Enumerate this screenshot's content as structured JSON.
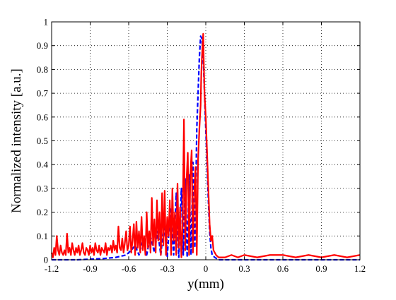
{
  "chart_data": {
    "type": "line",
    "title": "",
    "xlabel": "y(mm)",
    "ylabel": "Normalized intensity [a.u.]",
    "xlim": [
      -1.2,
      1.2
    ],
    "ylim": [
      0,
      1
    ],
    "xticks": [
      -1.2,
      -0.9,
      -0.6,
      -0.3,
      0,
      0.3,
      0.6,
      0.9,
      1.2
    ],
    "xtick_labels": [
      "-1.2",
      "-0.9",
      "-0.6",
      "-0.3",
      "0",
      "0.3",
      "0.6",
      "0.9",
      "1.2"
    ],
    "yticks": [
      0,
      0.1,
      0.2,
      0.3,
      0.4,
      0.5,
      0.6,
      0.7,
      0.8,
      0.9,
      1
    ],
    "ytick_labels": [
      "0",
      "0.1",
      "0.2",
      "0.3",
      "0.4",
      "0.5",
      "0.6",
      "0.7",
      "0.8",
      "0.9",
      "1"
    ],
    "grid": true,
    "legend": "none",
    "series": [
      {
        "color": "#0000ff",
        "style": "dashed",
        "x": [
          -1.2,
          -1.0,
          -0.8,
          -0.7,
          -0.62,
          -0.58,
          -0.55,
          -0.52,
          -0.49,
          -0.46,
          -0.43,
          -0.4,
          -0.375,
          -0.35,
          -0.325,
          -0.3,
          -0.275,
          -0.25,
          -0.23,
          -0.21,
          -0.19,
          -0.175,
          -0.16,
          -0.145,
          -0.13,
          -0.115,
          -0.1,
          -0.085,
          -0.07,
          -0.06,
          -0.05,
          -0.04,
          -0.03,
          -0.02,
          -0.01,
          0.0,
          0.01,
          0.02,
          0.03,
          0.04,
          0.05,
          0.07,
          0.1,
          0.2,
          0.6,
          1.2
        ],
        "y": [
          0,
          0,
          0.005,
          0.01,
          0.02,
          0.04,
          0.06,
          0.02,
          0.08,
          0.02,
          0.1,
          0.03,
          0.12,
          0.02,
          0.16,
          0.01,
          0.22,
          0.02,
          0.28,
          0.01,
          0.3,
          0.02,
          0.34,
          0.01,
          0.36,
          0.02,
          0.41,
          0.05,
          0.55,
          0.7,
          0.85,
          0.94,
          0.93,
          0.85,
          0.7,
          0.55,
          0.4,
          0.25,
          0.12,
          0.05,
          0.02,
          0.01,
          0,
          0,
          0,
          0
        ]
      },
      {
        "color": "#ff0000",
        "style": "solid",
        "x": [
          -1.2,
          -1.19,
          -1.18,
          -1.17,
          -1.16,
          -1.15,
          -1.14,
          -1.13,
          -1.12,
          -1.11,
          -1.1,
          -1.09,
          -1.08,
          -1.07,
          -1.06,
          -1.05,
          -1.04,
          -1.03,
          -1.02,
          -1.01,
          -1.0,
          -0.99,
          -0.98,
          -0.97,
          -0.96,
          -0.95,
          -0.94,
          -0.93,
          -0.92,
          -0.91,
          -0.9,
          -0.89,
          -0.88,
          -0.87,
          -0.86,
          -0.85,
          -0.84,
          -0.83,
          -0.82,
          -0.81,
          -0.8,
          -0.79,
          -0.78,
          -0.77,
          -0.76,
          -0.75,
          -0.74,
          -0.73,
          -0.72,
          -0.71,
          -0.7,
          -0.69,
          -0.68,
          -0.67,
          -0.66,
          -0.65,
          -0.64,
          -0.63,
          -0.62,
          -0.61,
          -0.6,
          -0.59,
          -0.58,
          -0.57,
          -0.56,
          -0.55,
          -0.54,
          -0.53,
          -0.52,
          -0.51,
          -0.5,
          -0.49,
          -0.48,
          -0.47,
          -0.46,
          -0.45,
          -0.44,
          -0.43,
          -0.42,
          -0.41,
          -0.4,
          -0.39,
          -0.38,
          -0.37,
          -0.36,
          -0.35,
          -0.34,
          -0.33,
          -0.32,
          -0.31,
          -0.3,
          -0.29,
          -0.28,
          -0.27,
          -0.26,
          -0.25,
          -0.24,
          -0.23,
          -0.22,
          -0.21,
          -0.2,
          -0.19,
          -0.18,
          -0.17,
          -0.16,
          -0.15,
          -0.14,
          -0.13,
          -0.12,
          -0.11,
          -0.1,
          -0.09,
          -0.08,
          -0.07,
          -0.06,
          -0.05,
          -0.04,
          -0.035,
          -0.03,
          -0.025,
          -0.02,
          -0.015,
          -0.01,
          0.0,
          0.01,
          0.02,
          0.03,
          0.04,
          0.05,
          0.06,
          0.07,
          0.08,
          0.1,
          0.15,
          0.2,
          0.25,
          0.3,
          0.4,
          0.5,
          0.6,
          0.7,
          0.8,
          0.9,
          1.0,
          1.1,
          1.2
        ],
        "y": [
          0.03,
          0.01,
          0.05,
          0.02,
          0.1,
          0.04,
          0.02,
          0.06,
          0.03,
          0.02,
          0.04,
          0.02,
          0.11,
          0.03,
          0.05,
          0.02,
          0.07,
          0.04,
          0.02,
          0.05,
          0.03,
          0.06,
          0.02,
          0.04,
          0.07,
          0.03,
          0.02,
          0.05,
          0.04,
          0.02,
          0.06,
          0.03,
          0.05,
          0.02,
          0.07,
          0.04,
          0.03,
          0.06,
          0.02,
          0.05,
          0.04,
          0.03,
          0.07,
          0.02,
          0.05,
          0.04,
          0.06,
          0.03,
          0.08,
          0.04,
          0.06,
          0.03,
          0.14,
          0.05,
          0.04,
          0.09,
          0.03,
          0.07,
          0.12,
          0.04,
          0.06,
          0.14,
          0.03,
          0.08,
          0.15,
          0.02,
          0.16,
          0.05,
          0.12,
          0.03,
          0.18,
          0.04,
          0.1,
          0.02,
          0.2,
          0.05,
          0.12,
          0.03,
          0.26,
          0.06,
          0.17,
          0.03,
          0.25,
          0.08,
          0.2,
          0.02,
          0.28,
          0.06,
          0.29,
          0.02,
          0.18,
          0.1,
          0.25,
          0.02,
          0.3,
          0.08,
          0.2,
          0.02,
          0.32,
          0.05,
          0.22,
          0.01,
          0.15,
          0.59,
          0.04,
          0.33,
          0.45,
          0.02,
          0.36,
          0.46,
          0.03,
          0.28,
          0.39,
          0.02,
          0.42,
          0.55,
          0.65,
          0.78,
          0.85,
          0.9,
          0.95,
          0.82,
          0.7,
          0.6,
          0.45,
          0.3,
          0.15,
          0.08,
          0.1,
          0.04,
          0.03,
          0.02,
          0.01,
          0.01,
          0.02,
          0.01,
          0.02,
          0.01,
          0.02,
          0.02,
          0.01,
          0.02,
          0.01,
          0.02,
          0.01,
          0.02
        ]
      }
    ]
  }
}
